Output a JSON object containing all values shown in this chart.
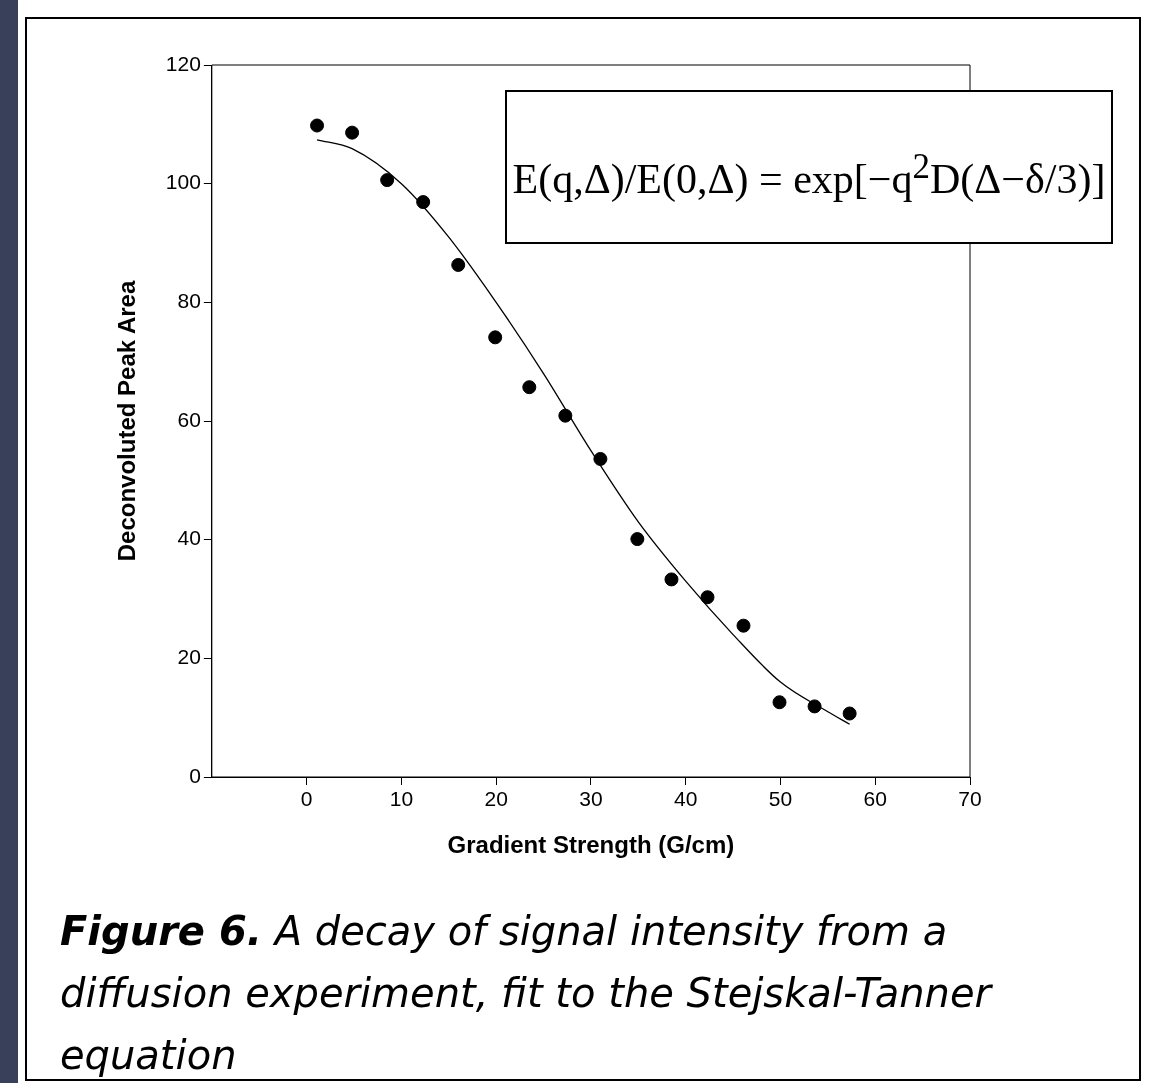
{
  "chart_data": {
    "type": "scatter",
    "xlabel": "Gradient Strength (G/cm)",
    "ylabel": "Deconvoluted Peak Area",
    "xlim": [
      -10,
      70
    ],
    "xticks": [
      0,
      10,
      20,
      30,
      40,
      50,
      60,
      70
    ],
    "ylim": [
      0,
      120
    ],
    "yticks": [
      0,
      20,
      40,
      60,
      80,
      100,
      120
    ],
    "grid": false,
    "legend": false,
    "marker": "circle",
    "series": [
      {
        "color": "#000000",
        "x": [
          1.1,
          4.8,
          8.5,
          12.3,
          16,
          19.9,
          23.5,
          27.3,
          31,
          34.9,
          38.5,
          42.3,
          46.1,
          49.9,
          53.6,
          57.3
        ],
        "values": [
          109.8,
          108.6,
          100.6,
          96.9,
          86.3,
          74.1,
          65.7,
          60.9,
          53.6,
          40.1,
          33.3,
          30.3,
          25.5,
          12.6,
          11.9,
          10.7
        ]
      },
      {
        "type": "line",
        "color": "#000000",
        "marker": "none",
        "x": [
          1.1,
          4.8,
          10,
          15,
          20,
          25,
          30,
          35,
          40,
          45,
          50,
          55,
          57.3
        ],
        "values": [
          107.4,
          105.9,
          100,
          91,
          80,
          68,
          55,
          43,
          33,
          24,
          16,
          11,
          8.9
        ]
      }
    ],
    "annotations": [
      "E(q,Δ)/E(0,Δ) = exp[−q$^{2}$D(Δ−δ/3)]",
      "Figure 6.",
      "A decay of signal intensity from a diffusion experiment, fit to the Stejskal-Tanner equation"
    ]
  }
}
